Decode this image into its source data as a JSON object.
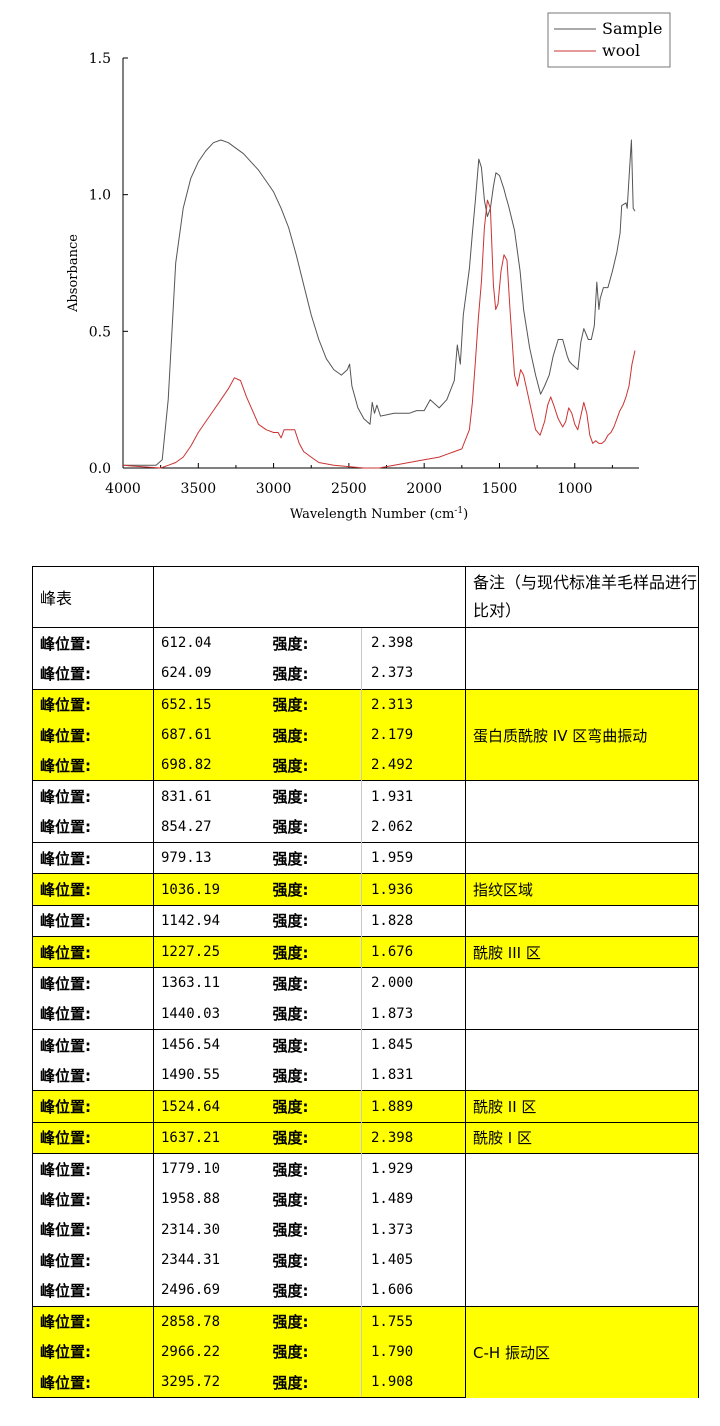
{
  "chart_data": {
    "type": "line",
    "xlabel": "Wavelength Number (cm",
    "xlabel_sup": "-1",
    "xlabel_close": ")",
    "ylabel": "Absorbance",
    "xlim": [
      4000,
      600
    ],
    "ylim": [
      0,
      1.5
    ],
    "x_ticks": [
      4000,
      3500,
      3000,
      2500,
      2000,
      1500,
      1000
    ],
    "y_ticks": [
      "0.0",
      "0.5",
      "1.0",
      "1.5"
    ],
    "legend_position": "top-right",
    "series": [
      {
        "name": "Sample",
        "color": "#555555",
        "points": [
          [
            4000,
            0.01
          ],
          [
            3850,
            0.01
          ],
          [
            3780,
            0.01
          ],
          [
            3740,
            0.03
          ],
          [
            3700,
            0.25
          ],
          [
            3650,
            0.75
          ],
          [
            3600,
            0.95
          ],
          [
            3550,
            1.06
          ],
          [
            3500,
            1.12
          ],
          [
            3450,
            1.16
          ],
          [
            3400,
            1.19
          ],
          [
            3350,
            1.2
          ],
          [
            3300,
            1.19
          ],
          [
            3250,
            1.17
          ],
          [
            3200,
            1.15
          ],
          [
            3150,
            1.12
          ],
          [
            3100,
            1.09
          ],
          [
            3050,
            1.05
          ],
          [
            3000,
            1.01
          ],
          [
            2950,
            0.95
          ],
          [
            2900,
            0.88
          ],
          [
            2850,
            0.78
          ],
          [
            2800,
            0.67
          ],
          [
            2750,
            0.56
          ],
          [
            2700,
            0.47
          ],
          [
            2650,
            0.4
          ],
          [
            2600,
            0.36
          ],
          [
            2550,
            0.34
          ],
          [
            2510,
            0.36
          ],
          [
            2495,
            0.38
          ],
          [
            2480,
            0.3
          ],
          [
            2440,
            0.22
          ],
          [
            2400,
            0.18
          ],
          [
            2360,
            0.16
          ],
          [
            2345,
            0.24
          ],
          [
            2330,
            0.2
          ],
          [
            2314,
            0.23
          ],
          [
            2290,
            0.19
          ],
          [
            2200,
            0.2
          ],
          [
            2100,
            0.2
          ],
          [
            2050,
            0.21
          ],
          [
            2000,
            0.21
          ],
          [
            1960,
            0.25
          ],
          [
            1900,
            0.22
          ],
          [
            1850,
            0.25
          ],
          [
            1800,
            0.32
          ],
          [
            1780,
            0.45
          ],
          [
            1760,
            0.38
          ],
          [
            1740,
            0.56
          ],
          [
            1700,
            0.73
          ],
          [
            1680,
            0.86
          ],
          [
            1660,
            0.98
          ],
          [
            1637,
            1.13
          ],
          [
            1620,
            1.1
          ],
          [
            1600,
            0.98
          ],
          [
            1580,
            0.92
          ],
          [
            1560,
            0.95
          ],
          [
            1540,
            1.03
          ],
          [
            1524,
            1.08
          ],
          [
            1500,
            1.07
          ],
          [
            1470,
            1.02
          ],
          [
            1456,
            0.99
          ],
          [
            1440,
            0.96
          ],
          [
            1400,
            0.87
          ],
          [
            1363,
            0.72
          ],
          [
            1340,
            0.58
          ],
          [
            1300,
            0.44
          ],
          [
            1260,
            0.34
          ],
          [
            1227,
            0.27
          ],
          [
            1200,
            0.3
          ],
          [
            1170,
            0.34
          ],
          [
            1143,
            0.41
          ],
          [
            1110,
            0.47
          ],
          [
            1080,
            0.47
          ],
          [
            1050,
            0.41
          ],
          [
            1036,
            0.39
          ],
          [
            1020,
            0.38
          ],
          [
            979,
            0.36
          ],
          [
            960,
            0.46
          ],
          [
            940,
            0.51
          ],
          [
            910,
            0.47
          ],
          [
            890,
            0.47
          ],
          [
            870,
            0.52
          ],
          [
            854,
            0.68
          ],
          [
            840,
            0.58
          ],
          [
            831,
            0.62
          ],
          [
            810,
            0.66
          ],
          [
            780,
            0.66
          ],
          [
            750,
            0.72
          ],
          [
            720,
            0.79
          ],
          [
            699,
            0.86
          ],
          [
            688,
            0.96
          ],
          [
            660,
            0.97
          ],
          [
            652,
            0.95
          ],
          [
            640,
            1.06
          ],
          [
            624,
            1.2
          ],
          [
            612,
            0.95
          ],
          [
            600,
            0.94
          ]
        ]
      },
      {
        "name": "wool",
        "color": "#cc3333",
        "points": [
          [
            4000,
            0.01
          ],
          [
            3750,
            0.0
          ],
          [
            3700,
            0.01
          ],
          [
            3650,
            0.02
          ],
          [
            3600,
            0.04
          ],
          [
            3550,
            0.08
          ],
          [
            3500,
            0.13
          ],
          [
            3450,
            0.17
          ],
          [
            3400,
            0.21
          ],
          [
            3350,
            0.25
          ],
          [
            3300,
            0.29
          ],
          [
            3260,
            0.33
          ],
          [
            3220,
            0.32
          ],
          [
            3180,
            0.26
          ],
          [
            3140,
            0.21
          ],
          [
            3100,
            0.16
          ],
          [
            3050,
            0.14
          ],
          [
            3000,
            0.13
          ],
          [
            2970,
            0.13
          ],
          [
            2950,
            0.11
          ],
          [
            2930,
            0.14
          ],
          [
            2900,
            0.14
          ],
          [
            2860,
            0.14
          ],
          [
            2830,
            0.09
          ],
          [
            2800,
            0.06
          ],
          [
            2750,
            0.04
          ],
          [
            2700,
            0.02
          ],
          [
            2600,
            0.01
          ],
          [
            2400,
            0.0
          ],
          [
            2300,
            0.0
          ],
          [
            2200,
            0.01
          ],
          [
            2100,
            0.02
          ],
          [
            2000,
            0.03
          ],
          [
            1900,
            0.04
          ],
          [
            1850,
            0.05
          ],
          [
            1800,
            0.06
          ],
          [
            1750,
            0.07
          ],
          [
            1700,
            0.14
          ],
          [
            1680,
            0.24
          ],
          [
            1660,
            0.39
          ],
          [
            1640,
            0.55
          ],
          [
            1620,
            0.68
          ],
          [
            1600,
            0.88
          ],
          [
            1580,
            0.98
          ],
          [
            1560,
            0.95
          ],
          [
            1540,
            0.67
          ],
          [
            1525,
            0.58
          ],
          [
            1510,
            0.6
          ],
          [
            1490,
            0.72
          ],
          [
            1470,
            0.78
          ],
          [
            1450,
            0.76
          ],
          [
            1430,
            0.58
          ],
          [
            1400,
            0.34
          ],
          [
            1380,
            0.3
          ],
          [
            1360,
            0.36
          ],
          [
            1340,
            0.34
          ],
          [
            1300,
            0.24
          ],
          [
            1260,
            0.14
          ],
          [
            1230,
            0.12
          ],
          [
            1200,
            0.17
          ],
          [
            1180,
            0.23
          ],
          [
            1160,
            0.26
          ],
          [
            1140,
            0.23
          ],
          [
            1110,
            0.18
          ],
          [
            1080,
            0.15
          ],
          [
            1060,
            0.17
          ],
          [
            1040,
            0.22
          ],
          [
            1020,
            0.2
          ],
          [
            1000,
            0.16
          ],
          [
            980,
            0.14
          ],
          [
            960,
            0.19
          ],
          [
            940,
            0.24
          ],
          [
            920,
            0.2
          ],
          [
            900,
            0.12
          ],
          [
            880,
            0.09
          ],
          [
            860,
            0.1
          ],
          [
            840,
            0.09
          ],
          [
            820,
            0.09
          ],
          [
            800,
            0.1
          ],
          [
            780,
            0.12
          ],
          [
            760,
            0.13
          ],
          [
            740,
            0.15
          ],
          [
            720,
            0.18
          ],
          [
            700,
            0.21
          ],
          [
            680,
            0.23
          ],
          [
            660,
            0.26
          ],
          [
            640,
            0.3
          ],
          [
            620,
            0.38
          ],
          [
            600,
            0.43
          ]
        ]
      }
    ]
  },
  "table": {
    "header_label": "峰表",
    "note_header": "备注（与现代标准羊毛样品进行比对）",
    "rows": [
      {
        "label": "峰位置:",
        "position": "612.04",
        "intensity_label": "强度:",
        "intensity": "2.398",
        "hl": false
      },
      {
        "label": "峰位置:",
        "position": "624.09",
        "intensity_label": "强度:",
        "intensity": "2.373",
        "hl": false
      },
      {
        "label": "峰位置:",
        "position": "652.15",
        "intensity_label": "强度:",
        "intensity": "2.313",
        "hl": true
      },
      {
        "label": "峰位置:",
        "position": "687.61",
        "intensity_label": "强度:",
        "intensity": "2.179",
        "hl": true
      },
      {
        "label": "峰位置:",
        "position": "698.82",
        "intensity_label": "强度:",
        "intensity": "2.492",
        "hl": true
      },
      {
        "label": "峰位置:",
        "position": "831.61",
        "intensity_label": "强度:",
        "intensity": "1.931",
        "hl": false
      },
      {
        "label": "峰位置:",
        "position": "854.27",
        "intensity_label": "强度:",
        "intensity": "2.062",
        "hl": false
      },
      {
        "label": "峰位置:",
        "position": "979.13",
        "intensity_label": "强度:",
        "intensity": "1.959",
        "hl": false
      },
      {
        "label": "峰位置:",
        "position": "1036.19",
        "intensity_label": "强度:",
        "intensity": "1.936",
        "hl": true
      },
      {
        "label": "峰位置:",
        "position": "1142.94",
        "intensity_label": "强度:",
        "intensity": "1.828",
        "hl": false
      },
      {
        "label": "峰位置:",
        "position": "1227.25",
        "intensity_label": "强度:",
        "intensity": "1.676",
        "hl": true
      },
      {
        "label": "峰位置:",
        "position": "1363.11",
        "intensity_label": "强度:",
        "intensity": "2.000",
        "hl": false
      },
      {
        "label": "峰位置:",
        "position": "1440.03",
        "intensity_label": "强度:",
        "intensity": "1.873",
        "hl": false
      },
      {
        "label": "峰位置:",
        "position": "1456.54",
        "intensity_label": "强度:",
        "intensity": "1.845",
        "hl": false
      },
      {
        "label": "峰位置:",
        "position": "1490.55",
        "intensity_label": "强度:",
        "intensity": "1.831",
        "hl": false
      },
      {
        "label": "峰位置:",
        "position": "1524.64",
        "intensity_label": "强度:",
        "intensity": "1.889",
        "hl": true
      },
      {
        "label": "峰位置:",
        "position": "1637.21",
        "intensity_label": "强度:",
        "intensity": "2.398",
        "hl": true
      },
      {
        "label": "峰位置:",
        "position": "1779.10",
        "intensity_label": "强度:",
        "intensity": "1.929",
        "hl": false
      },
      {
        "label": "峰位置:",
        "position": "1958.88",
        "intensity_label": "强度:",
        "intensity": "1.489",
        "hl": false
      },
      {
        "label": "峰位置:",
        "position": "2314.30",
        "intensity_label": "强度:",
        "intensity": "1.373",
        "hl": false
      },
      {
        "label": "峰位置:",
        "position": "2344.31",
        "intensity_label": "强度:",
        "intensity": "1.405",
        "hl": false
      },
      {
        "label": "峰位置:",
        "position": "2496.69",
        "intensity_label": "强度:",
        "intensity": "1.606",
        "hl": false
      },
      {
        "label": "峰位置:",
        "position": "2858.78",
        "intensity_label": "强度:",
        "intensity": "1.755",
        "hl": true
      },
      {
        "label": "峰位置:",
        "position": "2966.22",
        "intensity_label": "强度:",
        "intensity": "1.790",
        "hl": true
      },
      {
        "label": "峰位置:",
        "position": "3295.72",
        "intensity_label": "强度:",
        "intensity": "1.908",
        "hl": true
      }
    ],
    "note_groups": [
      {
        "start": 0,
        "span": 2,
        "text": "",
        "hl": false
      },
      {
        "start": 2,
        "span": 3,
        "text": "蛋白质酰胺 IV 区弯曲振动",
        "hl": true
      },
      {
        "start": 5,
        "span": 2,
        "text": "",
        "hl": false
      },
      {
        "start": 7,
        "span": 1,
        "text": "",
        "hl": false
      },
      {
        "start": 8,
        "span": 1,
        "text": "指纹区域",
        "hl": true
      },
      {
        "start": 9,
        "span": 1,
        "text": "",
        "hl": false
      },
      {
        "start": 10,
        "span": 1,
        "text": "酰胺 III 区",
        "hl": true
      },
      {
        "start": 11,
        "span": 2,
        "text": "",
        "hl": false
      },
      {
        "start": 13,
        "span": 2,
        "text": "",
        "hl": false
      },
      {
        "start": 15,
        "span": 1,
        "text": "酰胺 II 区",
        "hl": true
      },
      {
        "start": 16,
        "span": 1,
        "text": "酰胺 I 区",
        "hl": true
      },
      {
        "start": 17,
        "span": 5,
        "text": "",
        "hl": false
      },
      {
        "start": 22,
        "span": 3,
        "text": "C-H 振动区",
        "hl": true
      }
    ]
  }
}
